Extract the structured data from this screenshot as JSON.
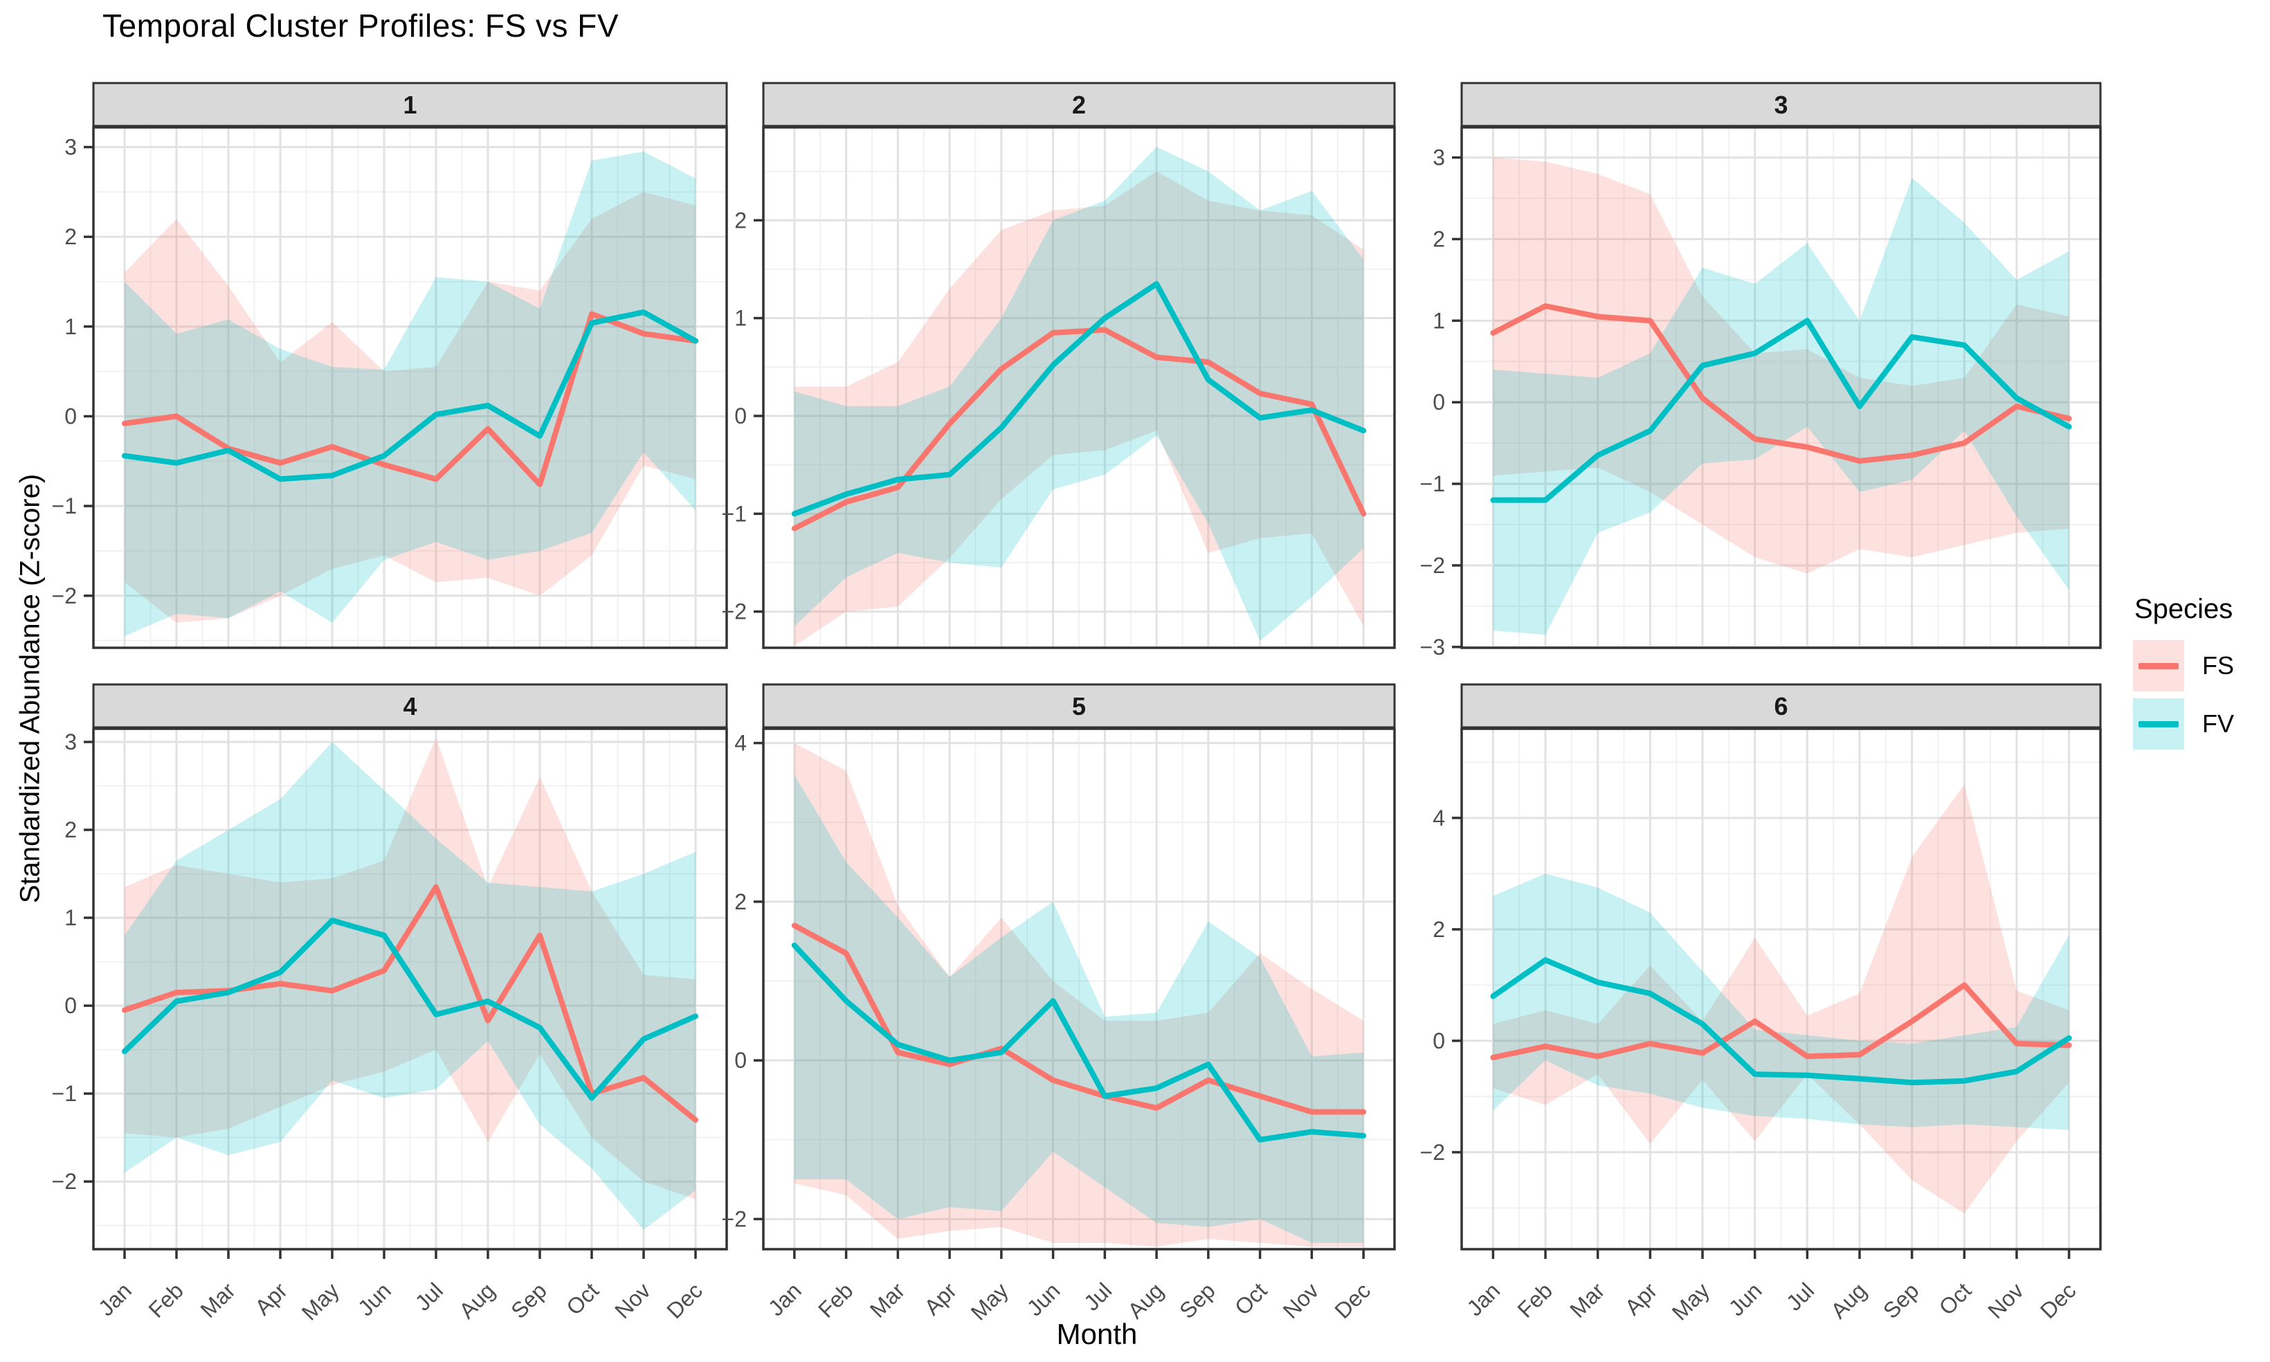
{
  "title": "Temporal Cluster Profiles: FS vs FV",
  "axes": {
    "x_title": "Month",
    "y_title": "Standardized Abundance (Z-score)"
  },
  "legend": {
    "title": "Species",
    "entries": [
      {
        "label": "FS",
        "color_key": "fs"
      },
      {
        "label": "FV",
        "color_key": "fv"
      }
    ]
  },
  "colors": {
    "fs_line": "#F8766D",
    "fv_line": "#00BFC4",
    "fs_fill": "rgba(248,118,109,0.22)",
    "fv_fill": "rgba(0,191,196,0.22)",
    "strip_bg": "#D9D9D9",
    "panel_border": "#333333",
    "grid_major": "#E2E2E2",
    "grid_minor": "#F1F1F1",
    "tick_text": "#4D4D4D",
    "strip_text": "#1a1a1a"
  },
  "chart_data": {
    "type": "line",
    "title": "Temporal Cluster Profiles: FS vs FV",
    "xlabel": "Month",
    "ylabel": "Standardized Abundance (Z-score)",
    "legend_title": "Species",
    "legend_position": "right",
    "grid": true,
    "x": [
      "Jan",
      "Feb",
      "Mar",
      "Apr",
      "May",
      "Jun",
      "Jul",
      "Aug",
      "Sep",
      "Oct",
      "Nov",
      "Dec"
    ],
    "series_names": [
      "FS",
      "FV"
    ],
    "note": "Each facet: cluster mean Z-score lines with shaded min-max ribbons",
    "facets": [
      {
        "label": "1",
        "ylim": [
          -2.58,
          3.22
        ],
        "yticks": [
          -2,
          -1,
          0,
          1,
          2,
          3
        ],
        "series": {
          "FS": {
            "mean": [
              -0.08,
              0.0,
              -0.36,
              -0.52,
              -0.34,
              -0.54,
              -0.7,
              -0.14,
              -0.76,
              1.14,
              0.92,
              0.84
            ],
            "lower": [
              -1.85,
              -2.3,
              -2.25,
              -2.0,
              -1.7,
              -1.55,
              -1.85,
              -1.8,
              -2.0,
              -1.55,
              -0.55,
              -0.7
            ],
            "upper": [
              1.6,
              2.2,
              1.45,
              0.6,
              1.05,
              0.5,
              0.55,
              1.5,
              1.4,
              2.2,
              2.5,
              2.35
            ]
          },
          "FV": {
            "mean": [
              -0.44,
              -0.52,
              -0.38,
              -0.7,
              -0.66,
              -0.44,
              0.02,
              0.12,
              -0.22,
              1.04,
              1.16,
              0.84
            ],
            "lower": [
              -2.45,
              -2.2,
              -2.25,
              -1.95,
              -2.3,
              -1.6,
              -1.4,
              -1.6,
              -1.5,
              -1.3,
              -0.4,
              -1.05
            ],
            "upper": [
              1.5,
              0.92,
              1.08,
              0.75,
              0.55,
              0.52,
              1.55,
              1.5,
              1.2,
              2.85,
              2.95,
              2.65
            ]
          }
        }
      },
      {
        "label": "2",
        "ylim": [
          -2.37,
          2.95
        ],
        "yticks": [
          -2,
          -1,
          0,
          1,
          2
        ],
        "series": {
          "FS": {
            "mean": [
              -1.15,
              -0.88,
              -0.73,
              -0.08,
              0.48,
              0.85,
              0.88,
              0.6,
              0.55,
              0.23,
              0.12,
              -1.0
            ],
            "lower": [
              -2.35,
              -2.0,
              -1.95,
              -1.45,
              -0.85,
              -0.4,
              -0.35,
              -0.15,
              -1.4,
              -1.25,
              -1.2,
              -2.15
            ],
            "upper": [
              0.3,
              0.3,
              0.55,
              1.3,
              1.9,
              2.1,
              2.15,
              2.5,
              2.2,
              2.1,
              2.05,
              1.7
            ]
          },
          "FV": {
            "mean": [
              -1.0,
              -0.8,
              -0.65,
              -0.6,
              -0.12,
              0.52,
              1.0,
              1.35,
              0.37,
              -0.02,
              0.06,
              -0.15
            ],
            "lower": [
              -2.15,
              -1.65,
              -1.4,
              -1.5,
              -1.55,
              -0.75,
              -0.6,
              -0.2,
              -1.1,
              -2.3,
              -1.85,
              -1.35
            ],
            "upper": [
              0.25,
              0.1,
              0.1,
              0.3,
              1.0,
              2.0,
              2.2,
              2.75,
              2.5,
              2.1,
              2.3,
              1.6
            ]
          }
        }
      },
      {
        "label": "3",
        "ylim": [
          -3.01,
          3.37
        ],
        "yticks": [
          -3,
          -2,
          -1,
          0,
          1,
          2,
          3
        ],
        "series": {
          "FS": {
            "mean": [
              0.85,
              1.18,
              1.05,
              1.0,
              0.05,
              -0.45,
              -0.55,
              -0.72,
              -0.65,
              -0.5,
              -0.05,
              -0.2
            ],
            "lower": [
              -0.9,
              -0.85,
              -0.8,
              -1.1,
              -1.5,
              -1.9,
              -2.1,
              -1.8,
              -1.9,
              -1.75,
              -1.6,
              -1.55
            ],
            "upper": [
              3.0,
              2.95,
              2.8,
              2.55,
              1.3,
              0.6,
              0.65,
              0.3,
              0.2,
              0.3,
              1.2,
              1.05
            ]
          },
          "FV": {
            "mean": [
              -1.2,
              -1.2,
              -0.65,
              -0.35,
              0.45,
              0.6,
              1.0,
              -0.05,
              0.8,
              0.7,
              0.05,
              -0.3
            ],
            "lower": [
              -2.8,
              -2.85,
              -1.6,
              -1.35,
              -0.75,
              -0.7,
              -0.3,
              -1.1,
              -0.95,
              -0.35,
              -1.4,
              -2.3
            ],
            "upper": [
              0.4,
              0.35,
              0.3,
              0.6,
              1.65,
              1.45,
              1.95,
              1.0,
              2.75,
              2.2,
              1.5,
              1.85
            ]
          }
        }
      },
      {
        "label": "4",
        "ylim": [
          -2.77,
          3.15
        ],
        "yticks": [
          -2,
          -1,
          0,
          1,
          2,
          3
        ],
        "series": {
          "FS": {
            "mean": [
              -0.05,
              0.15,
              0.17,
              0.25,
              0.17,
              0.4,
              1.35,
              -0.17,
              0.8,
              -1.0,
              -0.82,
              -1.3
            ],
            "lower": [
              -1.45,
              -1.5,
              -1.4,
              -1.15,
              -0.9,
              -0.75,
              -0.5,
              -1.55,
              -0.55,
              -1.5,
              -2.0,
              -2.2
            ],
            "upper": [
              1.35,
              1.6,
              1.5,
              1.4,
              1.45,
              1.65,
              3.05,
              1.35,
              2.6,
              1.3,
              0.35,
              0.3
            ]
          },
          "FV": {
            "mean": [
              -0.52,
              0.05,
              0.15,
              0.38,
              0.97,
              0.8,
              -0.1,
              0.05,
              -0.25,
              -1.05,
              -0.38,
              -0.12
            ],
            "lower": [
              -1.9,
              -1.5,
              -1.7,
              -1.55,
              -0.85,
              -1.05,
              -0.95,
              -0.4,
              -1.35,
              -1.85,
              -2.55,
              -2.1
            ],
            "upper": [
              0.8,
              1.65,
              2.0,
              2.35,
              3.0,
              2.45,
              1.9,
              1.4,
              1.35,
              1.3,
              1.5,
              1.75
            ]
          }
        }
      },
      {
        "label": "5",
        "ylim": [
          -2.38,
          4.18
        ],
        "yticks": [
          -2,
          0,
          2,
          4
        ],
        "series": {
          "FS": {
            "mean": [
              1.7,
              1.35,
              0.1,
              -0.05,
              0.15,
              -0.25,
              -0.45,
              -0.6,
              -0.25,
              -0.45,
              -0.65,
              -0.65
            ],
            "lower": [
              -1.55,
              -1.7,
              -2.25,
              -2.15,
              -2.1,
              -2.3,
              -2.3,
              -2.35,
              -2.25,
              -2.3,
              -2.35,
              -2.35
            ],
            "upper": [
              4.0,
              3.65,
              1.95,
              1.05,
              1.8,
              1.0,
              0.5,
              0.5,
              0.6,
              1.35,
              0.9,
              0.5
            ]
          },
          "FV": {
            "mean": [
              1.45,
              0.75,
              0.2,
              0.0,
              0.1,
              0.75,
              -0.45,
              -0.35,
              -0.05,
              -1.0,
              -0.9,
              -0.95
            ],
            "lower": [
              -1.5,
              -1.5,
              -2.0,
              -1.85,
              -1.9,
              -1.15,
              -1.6,
              -2.05,
              -2.1,
              -2.0,
              -2.3,
              -2.3
            ],
            "upper": [
              3.6,
              2.5,
              1.8,
              1.05,
              1.55,
              2.0,
              0.55,
              0.6,
              1.75,
              1.3,
              0.05,
              0.1
            ]
          }
        }
      },
      {
        "label": "6",
        "ylim": [
          -3.74,
          5.6
        ],
        "yticks": [
          -2,
          0,
          2,
          4
        ],
        "series": {
          "FS": {
            "mean": [
              -0.3,
              -0.1,
              -0.28,
              -0.05,
              -0.22,
              0.35,
              -0.28,
              -0.25,
              0.35,
              1.0,
              -0.05,
              -0.08
            ],
            "lower": [
              -0.85,
              -1.15,
              -0.6,
              -1.85,
              -0.7,
              -1.8,
              -0.6,
              -1.5,
              -2.5,
              -3.1,
              -1.8,
              -0.75
            ],
            "upper": [
              0.3,
              0.55,
              0.3,
              1.35,
              0.35,
              1.85,
              0.45,
              0.85,
              3.3,
              4.6,
              0.9,
              0.55
            ]
          },
          "FV": {
            "mean": [
              0.8,
              1.45,
              1.05,
              0.85,
              0.3,
              -0.6,
              -0.62,
              -0.68,
              -0.75,
              -0.72,
              -0.55,
              0.05
            ],
            "lower": [
              -1.25,
              -0.35,
              -0.8,
              -0.95,
              -1.2,
              -1.35,
              -1.4,
              -1.5,
              -1.55,
              -1.5,
              -1.55,
              -1.6
            ],
            "upper": [
              2.6,
              3.0,
              2.75,
              2.3,
              1.25,
              0.2,
              0.1,
              0.0,
              -0.05,
              0.1,
              0.25,
              1.9
            ]
          }
        }
      }
    ]
  }
}
